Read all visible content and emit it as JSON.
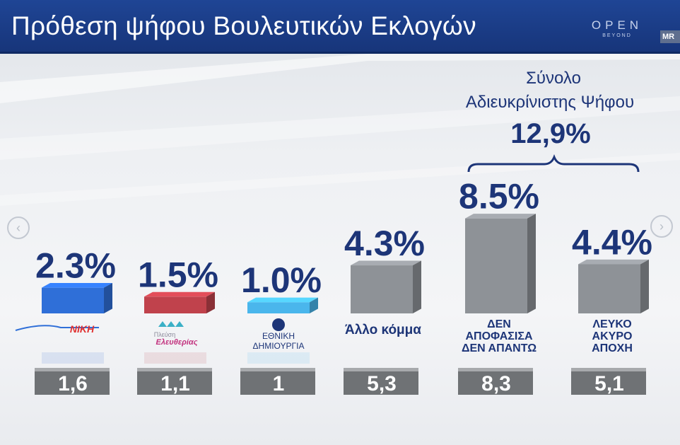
{
  "header": {
    "title": "Πρόθεση ψήφου Βουλευτικών Εκλογών",
    "brand_main": "OPEN",
    "brand_sub": "BEYOND",
    "badge": "MR"
  },
  "colors": {
    "header_bg": "#1f4595",
    "value_text": "#1d3578",
    "gray_bar": "#8e9297",
    "prev_box": "#6f7275",
    "niki": "#2f6fd8",
    "pleusi": "#c0424c",
    "ethniki": "#4ab6ec"
  },
  "annotation": {
    "line1": "Σύνολο",
    "line2": "Αδιευκρίνιστης Ψήφου",
    "total": "12,9%"
  },
  "chart_data": {
    "type": "bar",
    "title": "Πρόθεση ψήφου Βουλευτικών Εκλογών",
    "categories": [
      "ΝΙΚΗ",
      "Πλεύση Ελευθερίας",
      "ΕΘΝΙΚΗ ΔΗΜΙΟΥΡΓΙΑ",
      "Άλλο κόμμα",
      "ΔΕΝ ΑΠΟΦΑΣΙΣΑ ΔΕΝ ΑΠΑΝΤΩ",
      "ΛΕΥΚΟ ΑΚΥΡΟ ΑΠΟΧΗ"
    ],
    "series": [
      {
        "values": [
          2.3,
          1.5,
          1.0,
          4.3,
          8.5,
          4.4
        ]
      },
      {
        "values": [
          1.6,
          1.1,
          1,
          5.3,
          8.3,
          5.1
        ]
      }
    ],
    "value_labels": [
      "2.3%",
      "1.5%",
      "1.0%",
      "4.3%",
      "8.5%",
      "4.4%"
    ],
    "previous_labels": [
      "1,6",
      "1,1",
      "1",
      "5,3",
      "8,3",
      "5,1"
    ],
    "bar_text_labels": [
      "",
      "",
      "",
      "Άλλο κόμμα",
      "ΔΕΝ ΑΠΟΦΑΣΙΣΑ ΔΕΝ ΑΠΑΝΤΩ",
      "ΛΕΥΚΟ ΑΚΥΡΟ ΑΠΟΧΗ"
    ],
    "logo_texts": [
      "ΝΙΚΗ",
      "Πλεύση Ελευθερίας",
      "ΕΘΝΙΚΗ ΔΗΜΙΟΥΡΓΙΑ"
    ],
    "bracket_total": "12,9%",
    "xlabel": "",
    "ylabel": "",
    "ylim": [
      0,
      9
    ],
    "grid": false
  }
}
